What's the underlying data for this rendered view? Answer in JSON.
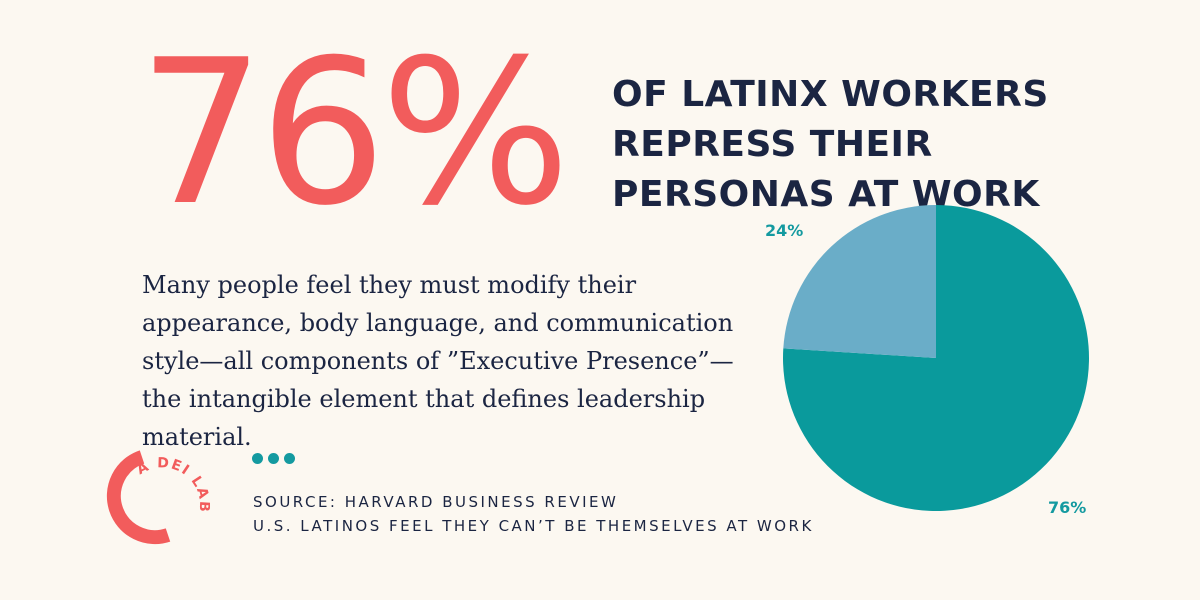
{
  "stat": {
    "value": "76%"
  },
  "headline": "OF LATINX WORKERS REPRESS THEIR PERSONAS AT WORK",
  "body": "Many people feel they must modify their appearance, body language, and communication style—all components of ”Executive Presence”—the intangible element that defines leadership material.",
  "source": {
    "line1": "SOURCE: HARVARD BUSINESS REVIEW",
    "line2": "U.S. LATINOS FEEL THEY CAN’T BE THEMSELVES AT WORK"
  },
  "logo": {
    "text": "A DEI LAB"
  },
  "colors": {
    "accent": "#f25c5c",
    "navy": "#1b2542",
    "teal": "#149aa0",
    "lightblue": "#6aadc8"
  },
  "chart_data": {
    "type": "pie",
    "slices": [
      {
        "label": "76%",
        "value": 76,
        "color": "#0a9a9c"
      },
      {
        "label": "24%",
        "value": 24,
        "color": "#6aadc8"
      }
    ],
    "start": "12 o'clock",
    "direction": "clockwise",
    "legend": "none"
  }
}
